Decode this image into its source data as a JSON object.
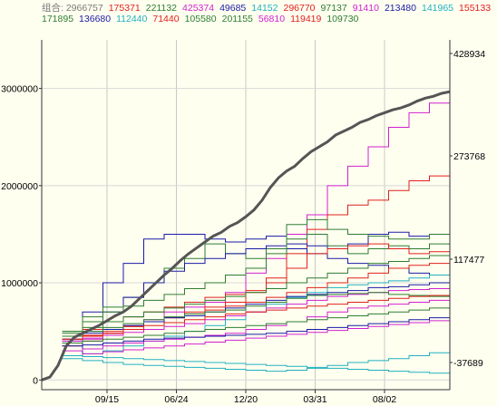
{
  "chart_data": {
    "type": "line",
    "legend": {
      "rows": [
        [
          {
            "text": "组合: 2966757",
            "color": "#7a7a7a"
          },
          {
            "text": "175371",
            "color": "#e0201c"
          },
          {
            "text": "221132",
            "color": "#2e7d32"
          },
          {
            "text": "425374",
            "color": "#d020d0"
          },
          {
            "text": "49685",
            "color": "#1a1aa8"
          },
          {
            "text": "14152",
            "color": "#20b0c0"
          },
          {
            "text": "296770",
            "color": "#e0201c"
          },
          {
            "text": "97137",
            "color": "#2e7d32"
          },
          {
            "text": "91410",
            "color": "#d020d0"
          },
          {
            "text": "213480",
            "color": "#1a1aa8"
          },
          {
            "text": "141965",
            "color": "#20b0c0"
          },
          {
            "text": "155133",
            "color": "#e0201c"
          }
        ],
        [
          {
            "text": "171895",
            "color": "#2e7d32"
          },
          {
            "text": "136680",
            "color": "#1a1aa8"
          },
          {
            "text": "112440",
            "color": "#20b0c0"
          },
          {
            "text": "71440",
            "color": "#e0201c"
          },
          {
            "text": "105580",
            "color": "#2e7d32"
          },
          {
            "text": "201155",
            "color": "#2e7d32"
          },
          {
            "text": "56810",
            "color": "#d020d0"
          },
          {
            "text": "119419",
            "color": "#e0201c"
          },
          {
            "text": "109730",
            "color": "#2e7d32"
          }
        ]
      ]
    },
    "y_left": {
      "ticks": [
        "3000000",
        "2000000",
        "1000000",
        "0"
      ],
      "values": [
        3000000,
        2000000,
        1000000,
        0
      ],
      "range": [
        -100000,
        3500000
      ]
    },
    "y_right": {
      "ticks": [
        "428934",
        "273768",
        "117477",
        "-37689"
      ],
      "values": [
        428934,
        273768,
        117477,
        -37689
      ]
    },
    "x_ticks": [
      "09/15",
      "06/24",
      "12/20",
      "03/31",
      "08/02"
    ],
    "main_series": {
      "name": "组合",
      "color": "#555555",
      "x": [
        0,
        0.02,
        0.04,
        0.06,
        0.08,
        0.1,
        0.12,
        0.14,
        0.16,
        0.18,
        0.2,
        0.22,
        0.24,
        0.26,
        0.28,
        0.3,
        0.32,
        0.34,
        0.36,
        0.38,
        0.4,
        0.42,
        0.44,
        0.46,
        0.48,
        0.5,
        0.52,
        0.54,
        0.56,
        0.58,
        0.6,
        0.62,
        0.64,
        0.66,
        0.68,
        0.7,
        0.72,
        0.74,
        0.76,
        0.78,
        0.8,
        0.82,
        0.84,
        0.86,
        0.88,
        0.9,
        0.92,
        0.94,
        0.96,
        0.98,
        1.0
      ],
      "y": [
        0,
        30000,
        150000,
        350000,
        440000,
        480000,
        520000,
        560000,
        610000,
        660000,
        700000,
        760000,
        840000,
        920000,
        1000000,
        1080000,
        1150000,
        1230000,
        1300000,
        1360000,
        1420000,
        1480000,
        1520000,
        1580000,
        1620000,
        1680000,
        1750000,
        1850000,
        1980000,
        2080000,
        2150000,
        2200000,
        2280000,
        2350000,
        2400000,
        2450000,
        2520000,
        2560000,
        2600000,
        2650000,
        2680000,
        2720000,
        2750000,
        2780000,
        2800000,
        2830000,
        2870000,
        2900000,
        2920000,
        2950000,
        2966757
      ]
    },
    "other_series": [
      {
        "color": "#d020d0",
        "y": [
          380000,
          420000,
          480000,
          560000,
          620000,
          700000,
          750000,
          800000,
          900000,
          1100000,
          1250000,
          1500000,
          1700000,
          2000000,
          2200000,
          2400000,
          2600000,
          2750000,
          2850000,
          2920000
        ]
      },
      {
        "color": "#e0201c",
        "y": [
          350000,
          400000,
          480000,
          550000,
          600000,
          640000,
          700000,
          750000,
          800000,
          900000,
          1050000,
          1300000,
          1550000,
          1700000,
          1800000,
          1850000,
          1950000,
          2050000,
          2100000,
          2120000
        ]
      },
      {
        "color": "#1a1aa8",
        "y": [
          400000,
          700000,
          1000000,
          1200000,
          1450000,
          1500000,
          1500000,
          1450000,
          1420000,
          1450000,
          1480000,
          1400000,
          1380000,
          1350000,
          1400000,
          1500000,
          1520000,
          1480000,
          1500000,
          1520000
        ]
      },
      {
        "color": "#2e7d32",
        "y": [
          500000,
          650000,
          750000,
          850000,
          1000000,
          1150000,
          1250000,
          1400000,
          1300000,
          1250000,
          1350000,
          1600000,
          1650000,
          1550000,
          1500000,
          1480000,
          1450000,
          1450000,
          1500000,
          1550000
        ]
      },
      {
        "color": "#1a1aa8",
        "y": [
          250000,
          500000,
          700000,
          850000,
          1000000,
          1120000,
          1200000,
          1250000,
          1300000,
          1350000,
          1380000,
          1350000,
          1300000,
          1250000,
          1200000,
          1180000,
          1150000,
          1100000,
          1080000,
          1050000
        ]
      },
      {
        "color": "#2e7d32",
        "y": [
          500000,
          600000,
          700000,
          760000,
          820000,
          880000,
          940000,
          1000000,
          1080000,
          1150000,
          1300000,
          1450000,
          1500000,
          1380000,
          1300000,
          1350000,
          1380000,
          1350000,
          1400000,
          1450000
        ]
      },
      {
        "color": "#e0201c",
        "y": [
          450000,
          520000,
          600000,
          650000,
          700000,
          750000,
          800000,
          850000,
          880000,
          920000,
          1000000,
          1150000,
          1300000,
          1350000,
          1380000,
          1400000,
          1350000,
          1300000,
          1320000,
          1350000
        ]
      },
      {
        "color": "#2e7d32",
        "y": [
          480000,
          540000,
          600000,
          650000,
          700000,
          740000,
          780000,
          820000,
          860000,
          900000,
          940000,
          1000000,
          1050000,
          1100000,
          1150000,
          1200000,
          1220000,
          1250000,
          1280000,
          1300000
        ]
      },
      {
        "color": "#e0201c",
        "y": [
          420000,
          460000,
          500000,
          550000,
          600000,
          640000,
          680000,
          720000,
          760000,
          800000,
          850000,
          900000,
          950000,
          1000000,
          1050000,
          1100000,
          1150000,
          1180000,
          1200000,
          1220000
        ]
      },
      {
        "color": "#20b0c0",
        "y": [
          250000,
          270000,
          300000,
          350000,
          400000,
          450000,
          500000,
          560000,
          620000,
          700000,
          780000,
          850000,
          900000,
          950000,
          980000,
          1000000,
          1020000,
          1050000,
          1080000,
          1100000
        ]
      },
      {
        "color": "#1a1aa8",
        "y": [
          420000,
          480000,
          520000,
          560000,
          600000,
          640000,
          660000,
          700000,
          740000,
          780000,
          820000,
          860000,
          880000,
          900000,
          920000,
          950000,
          960000,
          980000,
          1000000,
          1020000
        ]
      },
      {
        "color": "#d020d0",
        "y": [
          400000,
          430000,
          460000,
          490000,
          520000,
          550000,
          580000,
          620000,
          660000,
          700000,
          740000,
          780000,
          820000,
          860000,
          880000,
          900000,
          920000,
          930000,
          940000,
          950000
        ]
      },
      {
        "color": "#2e7d32",
        "y": [
          450000,
          500000,
          540000,
          580000,
          620000,
          650000,
          680000,
          700000,
          720000,
          760000,
          800000,
          840000,
          870000,
          880000,
          890000,
          900000,
          880000,
          870000,
          860000,
          850000
        ]
      },
      {
        "color": "#e0201c",
        "y": [
          420000,
          450000,
          480000,
          520000,
          560000,
          590000,
          620000,
          650000,
          680000,
          700000,
          720000,
          740000,
          760000,
          780000,
          800000,
          820000,
          840000,
          860000,
          870000,
          880000
        ]
      },
      {
        "color": "#d020d0",
        "y": [
          300000,
          320000,
          350000,
          380000,
          400000,
          420000,
          440000,
          460000,
          480000,
          520000,
          560000,
          600000,
          650000,
          700000,
          740000,
          760000,
          780000,
          800000,
          820000,
          830000
        ]
      },
      {
        "color": "#2e7d32",
        "y": [
          380000,
          400000,
          420000,
          440000,
          460000,
          480000,
          500000,
          520000,
          540000,
          560000,
          580000,
          600000,
          620000,
          640000,
          660000,
          680000,
          700000,
          720000,
          740000,
          760000
        ]
      },
      {
        "color": "#20b0c0",
        "y": [
          220000,
          200000,
          180000,
          160000,
          150000,
          140000,
          130000,
          120000,
          110000,
          100000,
          90000,
          100000,
          120000,
          150000,
          180000,
          200000,
          220000,
          250000,
          280000,
          300000
        ]
      },
      {
        "color": "#1a1aa8",
        "y": [
          350000,
          360000,
          380000,
          400000,
          420000,
          430000,
          440000,
          450000,
          460000,
          470000,
          480000,
          500000,
          520000,
          540000,
          560000,
          580000,
          600000,
          620000,
          640000,
          660000
        ]
      },
      {
        "color": "#d020d0",
        "y": [
          250000,
          270000,
          290000,
          310000,
          330000,
          350000,
          370000,
          390000,
          410000,
          430000,
          450000,
          470000,
          490000,
          510000,
          530000,
          550000,
          570000,
          590000,
          610000,
          630000
        ]
      },
      {
        "color": "#20b0c0",
        "y": [
          250000,
          240000,
          230000,
          220000,
          210000,
          200000,
          190000,
          180000,
          170000,
          160000,
          150000,
          140000,
          130000,
          120000,
          110000,
          100000,
          90000,
          80000,
          70000,
          60000
        ]
      }
    ]
  }
}
